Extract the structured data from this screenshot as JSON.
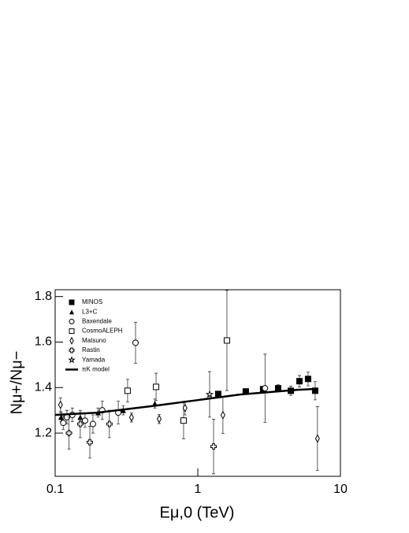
{
  "chart_data": {
    "type": "scatter",
    "xlabel": "Eμ,0 (TeV)",
    "ylabel": "Nμ+/Nμ−",
    "xlim": [
      0.1,
      10
    ],
    "ylim": [
      1.01,
      1.83
    ],
    "xlog": true,
    "xticks": [
      0.1,
      1,
      10
    ],
    "yticks": [
      1.2,
      1.4,
      1.6,
      1.8
    ],
    "legend": "upper left",
    "series": [
      {
        "name": "MINOS",
        "marker": "square-filled",
        "color": "#000000",
        "x": [
          1.39,
          2.17,
          2.87,
          3.66,
          4.49,
          5.16,
          5.93,
          6.65
        ],
        "values": [
          1.372,
          1.383,
          1.393,
          1.397,
          1.386,
          1.428,
          1.438,
          1.386
        ],
        "errors": [
          0.01,
          0.01,
          0.012,
          0.015,
          0.02,
          0.025,
          0.03,
          0.04
        ]
      },
      {
        "name": "L3+C",
        "marker": "triangle-filled",
        "color": "#000000",
        "x": [
          0.11,
          0.15,
          0.2,
          0.3,
          0.5
        ],
        "values": [
          1.27,
          1.27,
          1.29,
          1.3,
          1.33
        ],
        "errors": [
          0.02,
          0.02,
          0.02,
          0.02,
          0.02
        ]
      },
      {
        "name": "Baxendale",
        "marker": "circle",
        "color": "#000000",
        "x": [
          0.114,
          0.121,
          0.132,
          0.162,
          0.184,
          0.214,
          0.277,
          0.366,
          2.96
        ],
        "values": [
          1.245,
          1.27,
          1.28,
          1.255,
          1.24,
          1.3,
          1.29,
          1.597,
          1.397
        ],
        "errors": [
          0.03,
          0.03,
          0.03,
          0.03,
          0.04,
          0.04,
          0.05,
          0.09,
          0.15
        ]
      },
      {
        "name": "CosmoALEPH",
        "marker": "square",
        "color": "#000000",
        "x": [
          0.322,
          0.51,
          0.795,
          1.6
        ],
        "values": [
          1.386,
          1.403,
          1.255,
          1.607
        ],
        "errors": [
          0.05,
          0.06,
          0.08,
          0.22
        ]
      },
      {
        "name": "Matsuno",
        "marker": "diamond",
        "color": "#000000",
        "x": [
          0.109,
          0.343,
          0.536,
          0.814,
          1.5,
          6.9
        ],
        "values": [
          1.324,
          1.269,
          1.262,
          1.31,
          1.279,
          1.176
        ],
        "errors": [
          0.03,
          0.02,
          0.02,
          0.03,
          0.08,
          0.14
        ]
      },
      {
        "name": "Rastin",
        "marker": "cross",
        "color": "#000000",
        "x": [
          0.125,
          0.15,
          0.175,
          0.24,
          1.29
        ],
        "values": [
          1.2,
          1.24,
          1.16,
          1.24,
          1.141
        ],
        "errors": [
          0.07,
          0.06,
          0.07,
          0.06,
          0.12
        ]
      },
      {
        "name": "Yamada",
        "marker": "star",
        "color": "#000000",
        "x": [
          1.21
        ],
        "values": [
          1.37
        ],
        "errors": [
          0.1
        ]
      },
      {
        "name": "πK model",
        "marker": "line",
        "color": "#000000",
        "x": [
          0.1,
          0.2,
          0.5,
          1,
          2,
          5,
          7
        ],
        "values": [
          1.28,
          1.29,
          1.32,
          1.345,
          1.37,
          1.39,
          1.395
        ]
      }
    ]
  }
}
